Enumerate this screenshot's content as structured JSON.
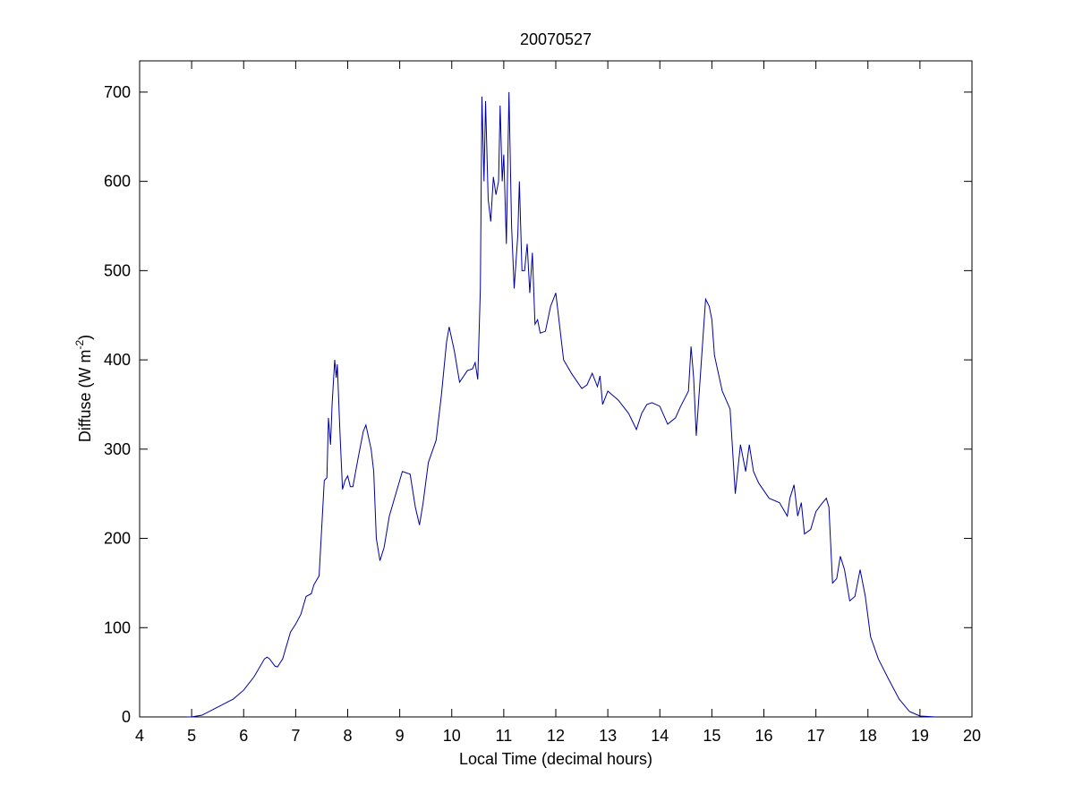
{
  "chart_data": {
    "type": "line",
    "title": "20070527",
    "xlabel": "Local Time (decimal hours)",
    "ylabel": [
      "Diffuse (W m",
      "-2",
      ")"
    ],
    "xlim": [
      4,
      20
    ],
    "xticks": [
      4,
      5,
      6,
      7,
      8,
      9,
      10,
      11,
      12,
      13,
      14,
      15,
      16,
      17,
      18,
      19,
      20
    ],
    "ylim": [
      0,
      735
    ],
    "yticks": [
      0,
      100,
      200,
      300,
      400,
      500,
      600,
      700
    ],
    "grid": false,
    "series": [
      {
        "color": "#0000a0",
        "x": [
          4.9,
          5.0,
          5.2,
          5.4,
          5.6,
          5.8,
          6.0,
          6.2,
          6.4,
          6.45,
          6.5,
          6.6,
          6.65,
          6.75,
          6.9,
          7.0,
          7.1,
          7.2,
          7.3,
          7.35,
          7.45,
          7.55,
          7.6,
          7.63,
          7.67,
          7.7,
          7.75,
          7.78,
          7.8,
          7.85,
          7.9,
          7.95,
          8.0,
          8.05,
          8.1,
          8.2,
          8.3,
          8.35,
          8.45,
          8.5,
          8.55,
          8.62,
          8.7,
          8.8,
          8.9,
          9.0,
          9.05,
          9.2,
          9.3,
          9.38,
          9.45,
          9.55,
          9.7,
          9.8,
          9.9,
          9.95,
          10.05,
          10.15,
          10.3,
          10.4,
          10.45,
          10.5,
          10.55,
          10.58,
          10.62,
          10.65,
          10.7,
          10.75,
          10.8,
          10.85,
          10.9,
          10.93,
          10.97,
          11.0,
          11.05,
          11.1,
          11.15,
          11.2,
          11.27,
          11.3,
          11.35,
          11.4,
          11.45,
          11.5,
          11.55,
          11.6,
          11.65,
          11.7,
          11.8,
          11.9,
          12.0,
          12.05,
          12.15,
          12.3,
          12.5,
          12.6,
          12.7,
          12.8,
          12.85,
          12.9,
          13.0,
          13.1,
          13.2,
          13.4,
          13.55,
          13.65,
          13.75,
          13.85,
          14.0,
          14.15,
          14.3,
          14.4,
          14.55,
          14.6,
          14.65,
          14.7,
          14.8,
          14.88,
          14.95,
          15.0,
          15.05,
          15.2,
          15.35,
          15.45,
          15.55,
          15.65,
          15.72,
          15.8,
          15.9,
          16.1,
          16.3,
          16.45,
          16.5,
          16.58,
          16.65,
          16.72,
          16.78,
          16.9,
          17.0,
          17.1,
          17.2,
          17.25,
          17.32,
          17.4,
          17.47,
          17.55,
          17.65,
          17.75,
          17.85,
          17.95,
          18.05,
          18.2,
          18.4,
          18.6,
          18.8,
          19.0,
          19.3
        ],
        "values": [
          0,
          0,
          2,
          8,
          14,
          20,
          30,
          45,
          65,
          67,
          65,
          57,
          56,
          65,
          95,
          104,
          115,
          135,
          138,
          148,
          158,
          265,
          268,
          335,
          305,
          350,
          400,
          380,
          395,
          320,
          255,
          265,
          270,
          258,
          258,
          290,
          320,
          327,
          300,
          275,
          200,
          175,
          190,
          225,
          245,
          265,
          275,
          272,
          235,
          215,
          240,
          285,
          310,
          360,
          420,
          437,
          410,
          375,
          388,
          390,
          397,
          378,
          480,
          695,
          600,
          690,
          580,
          555,
          605,
          585,
          600,
          685,
          600,
          630,
          530,
          700,
          550,
          480,
          540,
          600,
          500,
          500,
          530,
          475,
          520,
          440,
          445,
          430,
          432,
          460,
          475,
          450,
          400,
          385,
          368,
          372,
          385,
          370,
          382,
          350,
          365,
          360,
          355,
          340,
          322,
          340,
          350,
          352,
          348,
          328,
          335,
          348,
          365,
          415,
          380,
          315,
          400,
          468,
          460,
          445,
          405,
          365,
          345,
          250,
          305,
          275,
          305,
          275,
          262,
          245,
          240,
          225,
          245,
          260,
          225,
          240,
          205,
          210,
          230,
          238,
          245,
          235,
          150,
          155,
          180,
          165,
          130,
          135,
          165,
          135,
          90,
          65,
          42,
          20,
          6,
          1,
          0
        ]
      }
    ]
  }
}
